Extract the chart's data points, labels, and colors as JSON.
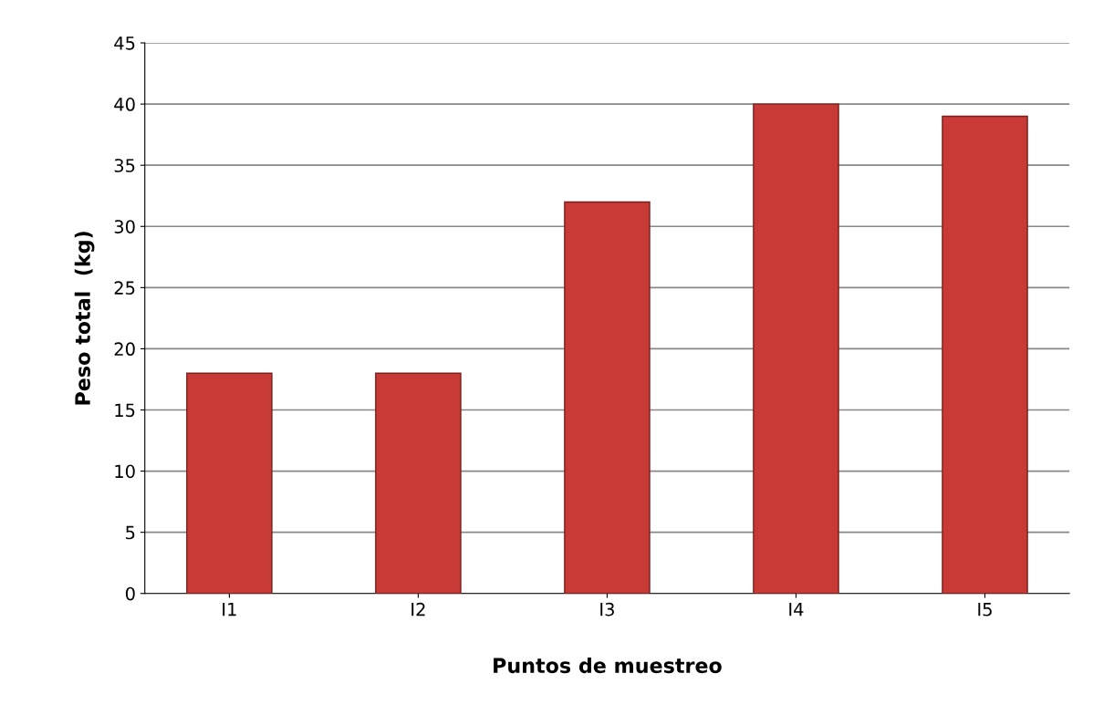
{
  "chart_data": {
    "type": "bar",
    "xlabel": "Puntos de muestreo",
    "ylabel": "Peso total  (kg)",
    "categories": [
      "I1",
      "I2",
      "I3",
      "I4",
      "I5"
    ],
    "values": [
      18,
      18,
      32,
      40,
      39
    ],
    "color": "#c83a36",
    "ylim": [
      0,
      45
    ],
    "yticks": [
      0,
      5,
      10,
      15,
      20,
      25,
      30,
      35,
      40,
      45
    ],
    "grid": "y"
  }
}
